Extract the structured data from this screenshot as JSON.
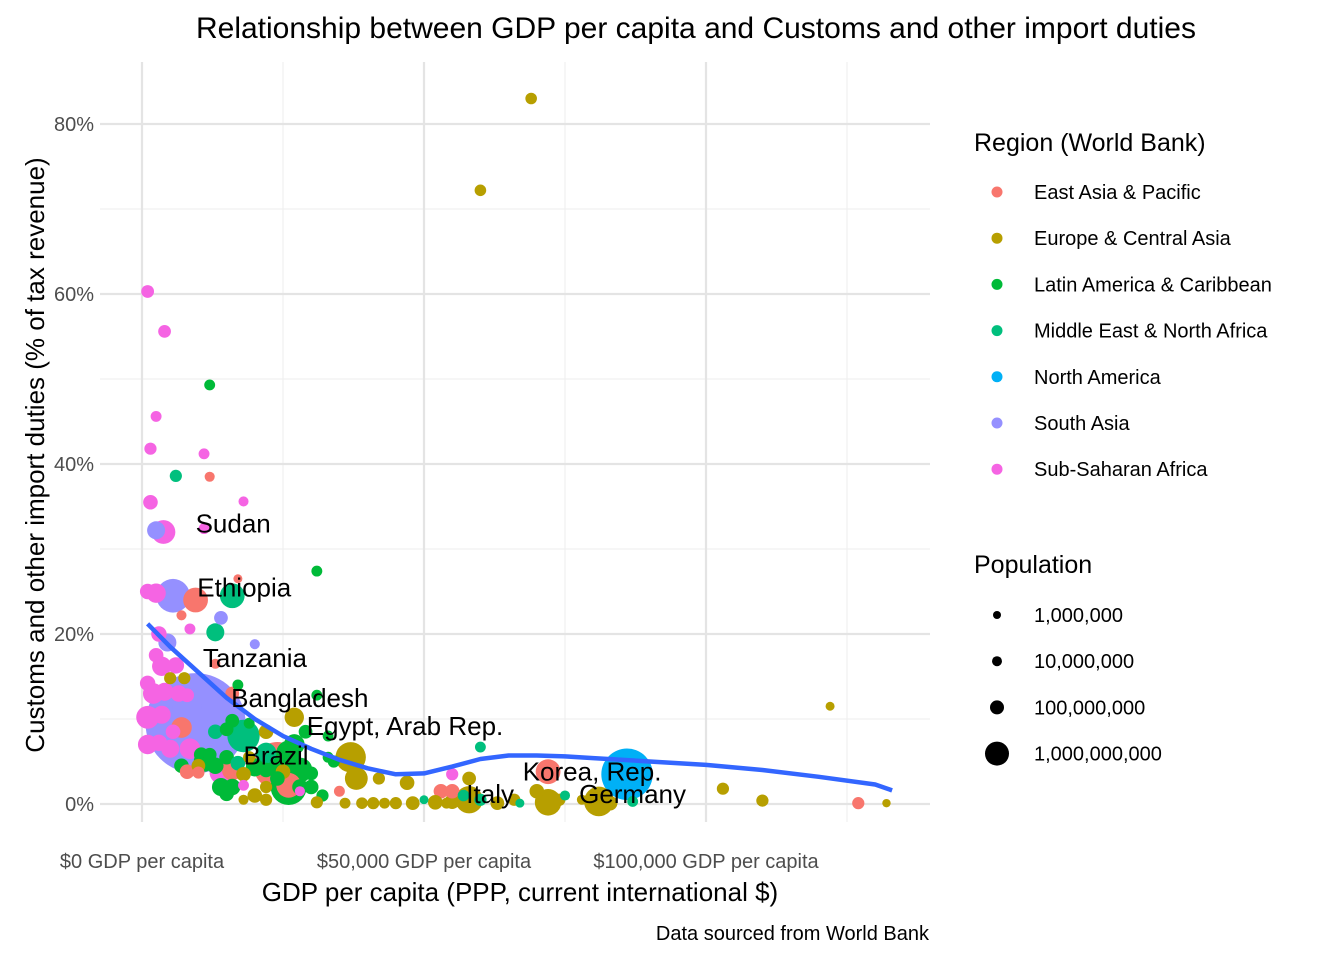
{
  "chart_data": {
    "type": "scatter",
    "title": "Relationship between GDP per capita and Customs and other import duties",
    "xlabel": "GDP per capita (PPP, current international $)",
    "ylabel": "Customs and other import duties (% of tax revenue)",
    "caption": "Data sourced from World Bank",
    "xlim": [
      -2000,
      140000
    ],
    "ylim": [
      -3,
      86
    ],
    "grid": true,
    "x_ticks": [
      {
        "value": 0,
        "label": "$0 GDP per capita"
      },
      {
        "value": 50000,
        "label": "$50,000 GDP per capita"
      },
      {
        "value": 100000,
        "label": "$100,000 GDP per capita"
      }
    ],
    "y_ticks": [
      {
        "value": 0,
        "label": "0%"
      },
      {
        "value": 20,
        "label": "20%"
      },
      {
        "value": 40,
        "label": "40%"
      },
      {
        "value": 60,
        "label": "60%"
      },
      {
        "value": 80,
        "label": "80%"
      }
    ],
    "legend_position": "right",
    "legend_region": {
      "title": "Region (World Bank)",
      "entries": [
        {
          "label": "East Asia & Pacific",
          "color": "#F8766D"
        },
        {
          "label": "Europe & Central Asia",
          "color": "#B79F00"
        },
        {
          "label": "Latin America & Caribbean",
          "color": "#00BA38"
        },
        {
          "label": "Middle East & North Africa",
          "color": "#00BF7D"
        },
        {
          "label": "North America",
          "color": "#00B0F6"
        },
        {
          "label": "South Asia",
          "color": "#9590FF"
        },
        {
          "label": "Sub-Saharan Africa",
          "color": "#F564E3"
        }
      ]
    },
    "legend_size": {
      "title": "Population",
      "entries": [
        {
          "label": "1,000,000",
          "value": 1000000
        },
        {
          "label": "10,000,000",
          "value": 10000000
        },
        {
          "label": "100,000,000",
          "value": 100000000
        },
        {
          "label": "1,000,000,000",
          "value": 1000000000
        }
      ]
    },
    "smooth_color": "#3366FF",
    "smooth_line": [
      [
        1000,
        21.2
      ],
      [
        5000,
        18.5
      ],
      [
        10000,
        15.5
      ],
      [
        15000,
        12.5
      ],
      [
        20000,
        10.0
      ],
      [
        25000,
        8.0
      ],
      [
        30000,
        6.5
      ],
      [
        35000,
        5.2
      ],
      [
        40000,
        4.2
      ],
      [
        45000,
        3.5
      ],
      [
        50000,
        3.6
      ],
      [
        55000,
        4.4
      ],
      [
        60000,
        5.3
      ],
      [
        65000,
        5.7
      ],
      [
        70000,
        5.7
      ],
      [
        75000,
        5.6
      ],
      [
        80000,
        5.4
      ],
      [
        90000,
        5.0
      ],
      [
        100000,
        4.6
      ],
      [
        110000,
        4.0
      ],
      [
        120000,
        3.2
      ],
      [
        130000,
        2.3
      ],
      [
        133000,
        1.6
      ]
    ],
    "points": [
      {
        "x": 60000,
        "y": 72.2,
        "r": 1,
        "pop": 4000000
      },
      {
        "x": 69000,
        "y": 83.0,
        "r": 1,
        "pop": 4000000
      },
      {
        "x": 1000,
        "y": 60.3,
        "r": 6,
        "pop": 6000000
      },
      {
        "x": 4000,
        "y": 55.6,
        "r": 6,
        "pop": 6000000
      },
      {
        "x": 12000,
        "y": 49.3,
        "r": 2,
        "pop": 3000000
      },
      {
        "x": 2500,
        "y": 45.6,
        "r": 6,
        "pop": 3000000
      },
      {
        "x": 1500,
        "y": 41.8,
        "r": 6,
        "pop": 5000000
      },
      {
        "x": 11000,
        "y": 41.2,
        "r": 6,
        "pop": 3000000
      },
      {
        "x": 6000,
        "y": 38.6,
        "r": 3,
        "pop": 5000000
      },
      {
        "x": 12000,
        "y": 38.5,
        "r": 0,
        "pop": 2000000
      },
      {
        "x": 18000,
        "y": 35.6,
        "r": 6,
        "pop": 2000000
      },
      {
        "x": 1500,
        "y": 35.5,
        "r": 6,
        "pop": 10000000
      },
      {
        "x": 11000,
        "y": 32.4,
        "r": 6,
        "pop": 3000000
      },
      {
        "x": 2500,
        "y": 32.2,
        "r": 5,
        "pop": 20000000
      },
      {
        "x": 3800,
        "y": 32.0,
        "r": 6,
        "pop": 45000000
      },
      {
        "x": 31000,
        "y": 27.4,
        "r": 2,
        "pop": 3000000
      },
      {
        "x": 17000,
        "y": 26.5,
        "r": 0,
        "pop": 1000000
      },
      {
        "x": 1000,
        "y": 25.0,
        "r": 6,
        "pop": 12000000
      },
      {
        "x": 2500,
        "y": 24.8,
        "r": 6,
        "pop": 25000000
      },
      {
        "x": 5500,
        "y": 24.5,
        "r": 5,
        "pop": 110000000
      },
      {
        "x": 9500,
        "y": 24.0,
        "r": 0,
        "pop": 50000000
      },
      {
        "x": 16000,
        "y": 24.5,
        "r": 3,
        "pop": 50000000
      },
      {
        "x": 7000,
        "y": 22.2,
        "r": 0,
        "pop": 2000000
      },
      {
        "x": 14000,
        "y": 21.9,
        "r": 5,
        "pop": 8000000
      },
      {
        "x": 13000,
        "y": 20.2,
        "r": 3,
        "pop": 20000000
      },
      {
        "x": 3000,
        "y": 20.0,
        "r": 6,
        "pop": 12000000
      },
      {
        "x": 8500,
        "y": 20.6,
        "r": 6,
        "pop": 3000000
      },
      {
        "x": 20000,
        "y": 18.8,
        "r": 5,
        "pop": 2000000
      },
      {
        "x": 4500,
        "y": 19.0,
        "r": 5,
        "pop": 20000000
      },
      {
        "x": 2500,
        "y": 17.5,
        "r": 6,
        "pop": 10000000
      },
      {
        "x": 3500,
        "y": 16.2,
        "r": 6,
        "pop": 25000000
      },
      {
        "x": 6000,
        "y": 16.3,
        "r": 6,
        "pop": 15000000
      },
      {
        "x": 13000,
        "y": 16.5,
        "r": 0,
        "pop": 2000000
      },
      {
        "x": 5000,
        "y": 14.8,
        "r": 1,
        "pop": 5000000
      },
      {
        "x": 7500,
        "y": 14.8,
        "r": 1,
        "pop": 5000000
      },
      {
        "x": 1000,
        "y": 14.2,
        "r": 6,
        "pop": 12000000
      },
      {
        "x": 17000,
        "y": 14.0,
        "r": 2,
        "pop": 3000000
      },
      {
        "x": 2000,
        "y": 13.0,
        "r": 6,
        "pop": 30000000
      },
      {
        "x": 4000,
        "y": 13.2,
        "r": 6,
        "pop": 20000000
      },
      {
        "x": 6500,
        "y": 13.0,
        "r": 6,
        "pop": 15000000
      },
      {
        "x": 8000,
        "y": 12.8,
        "r": 6,
        "pop": 8000000
      },
      {
        "x": 16000,
        "y": 13.0,
        "r": 0,
        "pop": 8000000
      },
      {
        "x": 31000,
        "y": 12.8,
        "r": 2,
        "pop": 3000000
      },
      {
        "x": 1000,
        "y": 10.2,
        "r": 6,
        "pop": 40000000
      },
      {
        "x": 3500,
        "y": 10.5,
        "r": 6,
        "pop": 20000000
      },
      {
        "x": 8000,
        "y": 9.5,
        "r": 5,
        "pop": 180000000
      },
      {
        "x": 8000,
        "y": 11.2,
        "r": 5,
        "pop": 80000000
      },
      {
        "x": 9500,
        "y": 9.5,
        "r": 5,
        "pop": 1300000000
      },
      {
        "x": 7000,
        "y": 9.0,
        "r": 0,
        "pop": 30000000
      },
      {
        "x": 5500,
        "y": 8.5,
        "r": 6,
        "pop": 10000000
      },
      {
        "x": 13000,
        "y": 8.5,
        "r": 3,
        "pop": 10000000
      },
      {
        "x": 15000,
        "y": 8.8,
        "r": 2,
        "pop": 8000000
      },
      {
        "x": 16000,
        "y": 9.8,
        "r": 2,
        "pop": 8000000
      },
      {
        "x": 18000,
        "y": 8.0,
        "r": 3,
        "pop": 100000000
      },
      {
        "x": 19000,
        "y": 9.5,
        "r": 2,
        "pop": 3000000
      },
      {
        "x": 22000,
        "y": 8.5,
        "r": 1,
        "pop": 10000000
      },
      {
        "x": 27000,
        "y": 10.2,
        "r": 1,
        "pop": 25000000
      },
      {
        "x": 29000,
        "y": 8.5,
        "r": 2,
        "pop": 8000000
      },
      {
        "x": 33000,
        "y": 8.0,
        "r": 2,
        "pop": 3000000
      },
      {
        "x": 1000,
        "y": 7.0,
        "r": 6,
        "pop": 25000000
      },
      {
        "x": 3000,
        "y": 7.2,
        "r": 6,
        "pop": 15000000
      },
      {
        "x": 5000,
        "y": 6.5,
        "r": 6,
        "pop": 20000000
      },
      {
        "x": 8500,
        "y": 6.5,
        "r": 6,
        "pop": 30000000
      },
      {
        "x": 10500,
        "y": 5.8,
        "r": 2,
        "pop": 10000000
      },
      {
        "x": 12000,
        "y": 5.8,
        "r": 2,
        "pop": 8000000
      },
      {
        "x": 15000,
        "y": 5.5,
        "r": 2,
        "pop": 10000000
      },
      {
        "x": 19000,
        "y": 5.5,
        "r": 1,
        "pop": 5000000
      },
      {
        "x": 22000,
        "y": 6.0,
        "r": 3,
        "pop": 30000000
      },
      {
        "x": 26000,
        "y": 6.0,
        "r": 2,
        "pop": 50000000
      },
      {
        "x": 27000,
        "y": 7.0,
        "r": 2,
        "pop": 30000000
      },
      {
        "x": 33000,
        "y": 5.5,
        "r": 2,
        "pop": 3000000
      },
      {
        "x": 37000,
        "y": 5.5,
        "r": 1,
        "pop": 85000000
      },
      {
        "x": 7000,
        "y": 4.5,
        "r": 2,
        "pop": 10000000
      },
      {
        "x": 10000,
        "y": 4.5,
        "r": 1,
        "pop": 8000000
      },
      {
        "x": 11000,
        "y": 5.0,
        "r": 2,
        "pop": 30000000
      },
      {
        "x": 13000,
        "y": 4.5,
        "r": 2,
        "pop": 15000000
      },
      {
        "x": 17000,
        "y": 4.8,
        "r": 3,
        "pop": 10000000
      },
      {
        "x": 20000,
        "y": 4.3,
        "r": 2,
        "pop": 20000000
      },
      {
        "x": 22000,
        "y": 4.0,
        "r": 2,
        "pop": 10000000
      },
      {
        "x": 24000,
        "y": 4.5,
        "r": 0,
        "pop": 250000000
      },
      {
        "x": 24000,
        "y": 4.5,
        "r": 2,
        "pop": 40000000
      },
      {
        "x": 25000,
        "y": 3.8,
        "r": 1,
        "pop": 10000000
      },
      {
        "x": 28000,
        "y": 4.0,
        "r": 2,
        "pop": 50000000
      },
      {
        "x": 30000,
        "y": 3.6,
        "r": 2,
        "pop": 8000000
      },
      {
        "x": 34000,
        "y": 5.0,
        "r": 2,
        "pop": 5000000
      },
      {
        "x": 8000,
        "y": 3.8,
        "r": 0,
        "pop": 10000000
      },
      {
        "x": 10000,
        "y": 3.7,
        "r": 0,
        "pop": 5000000
      },
      {
        "x": 14000,
        "y": 3.7,
        "r": 6,
        "pop": 40000000
      },
      {
        "x": 16000,
        "y": 4.0,
        "r": 0,
        "pop": 30000000
      },
      {
        "x": 18000,
        "y": 3.5,
        "r": 1,
        "pop": 10000000
      },
      {
        "x": 24000,
        "y": 3.0,
        "r": 2,
        "pop": 10000000
      },
      {
        "x": 38000,
        "y": 3.0,
        "r": 1,
        "pop": 40000000
      },
      {
        "x": 42000,
        "y": 3.0,
        "r": 1,
        "pop": 5000000
      },
      {
        "x": 58000,
        "y": 3.0,
        "r": 1,
        "pop": 8000000
      },
      {
        "x": 55000,
        "y": 3.5,
        "r": 6,
        "pop": 5000000
      },
      {
        "x": 18000,
        "y": 2.2,
        "r": 6,
        "pop": 3000000
      },
      {
        "x": 26000,
        "y": 2.2,
        "r": 0,
        "pop": 50000000
      },
      {
        "x": 26000,
        "y": 2.0,
        "r": 2,
        "pop": 130000000
      },
      {
        "x": 28000,
        "y": 2.0,
        "r": 2,
        "pop": 12000000
      },
      {
        "x": 30000,
        "y": 2.0,
        "r": 2,
        "pop": 10000000
      },
      {
        "x": 14000,
        "y": 2.0,
        "r": 2,
        "pop": 20000000
      },
      {
        "x": 16000,
        "y": 2.0,
        "r": 2,
        "pop": 15000000
      },
      {
        "x": 20000,
        "y": 1.0,
        "r": 1,
        "pop": 10000000
      },
      {
        "x": 22000,
        "y": 2.0,
        "r": 1,
        "pop": 5000000
      },
      {
        "x": 15000,
        "y": 1.2,
        "r": 2,
        "pop": 10000000
      },
      {
        "x": 32000,
        "y": 1.0,
        "r": 2,
        "pop": 5000000
      },
      {
        "x": 28000,
        "y": 1.5,
        "r": 6,
        "pop": 2000000
      },
      {
        "x": 35000,
        "y": 1.5,
        "r": 0,
        "pop": 3000000
      },
      {
        "x": 47000,
        "y": 2.5,
        "r": 1,
        "pop": 10000000
      },
      {
        "x": 53000,
        "y": 1.5,
        "r": 0,
        "pop": 10000000
      },
      {
        "x": 55000,
        "y": 1.5,
        "r": 0,
        "pop": 10000000
      },
      {
        "x": 57000,
        "y": 1.0,
        "r": 3,
        "pop": 4000000
      },
      {
        "x": 18000,
        "y": 0.5,
        "r": 1,
        "pop": 2000000
      },
      {
        "x": 22000,
        "y": 0.5,
        "r": 1,
        "pop": 5000000
      },
      {
        "x": 31000,
        "y": 0.2,
        "r": 1,
        "pop": 5000000
      },
      {
        "x": 36000,
        "y": 0.1,
        "r": 1,
        "pop": 3000000
      },
      {
        "x": 39000,
        "y": 0.1,
        "r": 1,
        "pop": 4000000
      },
      {
        "x": 41000,
        "y": 0.1,
        "r": 1,
        "pop": 5000000
      },
      {
        "x": 43000,
        "y": 0.1,
        "r": 1,
        "pop": 3000000
      },
      {
        "x": 45000,
        "y": 0.1,
        "r": 1,
        "pop": 5000000
      },
      {
        "x": 48000,
        "y": 0.1,
        "r": 1,
        "pop": 8000000
      },
      {
        "x": 52000,
        "y": 0.2,
        "r": 1,
        "pop": 10000000
      },
      {
        "x": 54000,
        "y": 0.1,
        "r": 1,
        "pop": 3000000
      },
      {
        "x": 55000,
        "y": 0.3,
        "r": 1,
        "pop": 11000000
      },
      {
        "x": 58000,
        "y": 0.5,
        "r": 1,
        "pop": 65000000
      },
      {
        "x": 63000,
        "y": 0.1,
        "r": 1,
        "pop": 8000000
      },
      {
        "x": 66000,
        "y": 0.5,
        "r": 1,
        "pop": 5000000
      },
      {
        "x": 70000,
        "y": 1.5,
        "r": 1,
        "pop": 10000000
      },
      {
        "x": 72000,
        "y": 0.2,
        "r": 1,
        "pop": 60000000
      },
      {
        "x": 74000,
        "y": 0.5,
        "r": 1,
        "pop": 5000000
      },
      {
        "x": 78000,
        "y": 0.5,
        "r": 1,
        "pop": 2000000
      },
      {
        "x": 81000,
        "y": 0.3,
        "r": 1,
        "pop": 80000000
      },
      {
        "x": 83000,
        "y": 0.1,
        "r": 1,
        "pop": 10000000
      },
      {
        "x": 60000,
        "y": 0.5,
        "r": 3,
        "pop": 5000000
      },
      {
        "x": 67000,
        "y": 0.1,
        "r": 3,
        "pop": 1000000
      },
      {
        "x": 75000,
        "y": 1.0,
        "r": 3,
        "pop": 2000000
      },
      {
        "x": 87000,
        "y": 0.3,
        "r": 3,
        "pop": 3000000
      },
      {
        "x": 50000,
        "y": 0.5,
        "r": 3,
        "pop": 1000000
      },
      {
        "x": 60000,
        "y": 6.7,
        "r": 3,
        "pop": 3000000
      },
      {
        "x": 72000,
        "y": 3.8,
        "r": 0,
        "pop": 50000000
      },
      {
        "x": 86000,
        "y": 3.5,
        "r": 4,
        "pop": 300000000
      },
      {
        "x": 85000,
        "y": 4.5,
        "r": 4,
        "pop": 38000000
      },
      {
        "x": 103000,
        "y": 1.8,
        "r": 1,
        "pop": 5000000
      },
      {
        "x": 110000,
        "y": 0.4,
        "r": 1,
        "pop": 5000000
      },
      {
        "x": 122000,
        "y": 11.5,
        "r": 1,
        "pop": 1000000
      },
      {
        "x": 127000,
        "y": 0.1,
        "r": 0,
        "pop": 5000000
      },
      {
        "x": 132000,
        "y": 0.1,
        "r": 1,
        "pop": 600000
      }
    ],
    "annotations": [
      {
        "label": "Sudan",
        "x": 9500,
        "y": 33.0
      },
      {
        "label": "Ethiopia",
        "x": 9800,
        "y": 25.5
      },
      {
        "label": "Tanzania",
        "x": 10800,
        "y": 17.2
      },
      {
        "label": "Bangladesh",
        "x": 15800,
        "y": 12.5
      },
      {
        "label": "Egypt, Arab Rep.",
        "x": 29200,
        "y": 9.2
      },
      {
        "label": "Brazil",
        "x": 18000,
        "y": 5.7
      },
      {
        "label": "Korea, Rep.",
        "x": 67500,
        "y": 3.8
      },
      {
        "label": "Italy",
        "x": 57500,
        "y": 1.2
      },
      {
        "label": "Germany",
        "x": 77500,
        "y": 1.2
      }
    ]
  }
}
